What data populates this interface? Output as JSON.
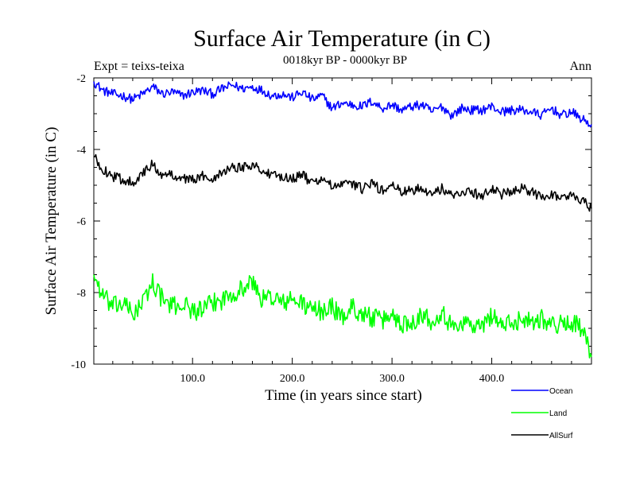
{
  "chart_data": {
    "type": "line",
    "title": "Surface Air Temperature (in C)",
    "subtitle": "0018kyr BP - 0000kyr BP",
    "experiment_label": "Expt = teixs-teixa",
    "season_label": "Ann",
    "xlabel": "Time (in years since start)",
    "ylabel": "Surface Air Temperature (in C)",
    "xlim": [
      1,
      500
    ],
    "ylim": [
      -10,
      -2
    ],
    "x_ticks": [
      100,
      200,
      300,
      400
    ],
    "x_tick_labels": [
      "100.0",
      "200.0",
      "300.0",
      "400.0"
    ],
    "y_ticks": [
      -2,
      -4,
      -6,
      -8,
      -10
    ],
    "y_tick_labels": [
      "-2",
      "-4",
      "-6",
      "-8",
      "-10"
    ],
    "legend_position": "bottom-right, below plot",
    "series": [
      {
        "name": "Ocean",
        "color": "#0000ff",
        "x": [
          1,
          10,
          20,
          30,
          40,
          50,
          60,
          70,
          80,
          90,
          100,
          110,
          120,
          130,
          140,
          150,
          160,
          170,
          180,
          190,
          200,
          210,
          220,
          230,
          240,
          250,
          260,
          270,
          280,
          290,
          300,
          310,
          320,
          330,
          340,
          350,
          360,
          370,
          380,
          390,
          400,
          410,
          420,
          430,
          440,
          450,
          460,
          470,
          480,
          490,
          500
        ],
        "values": [
          -2.1,
          -2.35,
          -2.45,
          -2.5,
          -2.6,
          -2.45,
          -2.25,
          -2.45,
          -2.4,
          -2.5,
          -2.4,
          -2.35,
          -2.45,
          -2.3,
          -2.2,
          -2.3,
          -2.25,
          -2.35,
          -2.5,
          -2.45,
          -2.55,
          -2.4,
          -2.6,
          -2.5,
          -2.85,
          -2.7,
          -2.75,
          -2.8,
          -2.65,
          -2.85,
          -2.75,
          -2.9,
          -2.8,
          -2.75,
          -2.95,
          -2.8,
          -3.05,
          -2.85,
          -2.9,
          -2.9,
          -2.8,
          -2.95,
          -2.9,
          -2.9,
          -2.95,
          -3.05,
          -2.85,
          -3.05,
          -2.95,
          -3.15,
          -3.3
        ]
      },
      {
        "name": "Land",
        "color": "#00ff00",
        "x": [
          1,
          10,
          20,
          30,
          40,
          50,
          60,
          70,
          80,
          90,
          100,
          110,
          120,
          130,
          140,
          150,
          160,
          170,
          180,
          190,
          200,
          210,
          220,
          230,
          240,
          250,
          260,
          270,
          280,
          290,
          300,
          310,
          320,
          330,
          340,
          350,
          360,
          370,
          380,
          390,
          400,
          410,
          420,
          430,
          440,
          450,
          460,
          470,
          480,
          490,
          500
        ],
        "values": [
          -7.5,
          -8.1,
          -8.4,
          -8.3,
          -8.6,
          -8.3,
          -7.7,
          -8.2,
          -8.4,
          -8.3,
          -8.5,
          -8.5,
          -8.3,
          -8.2,
          -8.0,
          -7.9,
          -7.7,
          -8.2,
          -8.1,
          -8.3,
          -8.2,
          -8.3,
          -8.5,
          -8.5,
          -8.4,
          -8.7,
          -8.4,
          -8.6,
          -8.7,
          -8.8,
          -8.6,
          -8.9,
          -8.8,
          -8.6,
          -8.8,
          -8.5,
          -9.0,
          -8.8,
          -8.9,
          -9.0,
          -8.6,
          -8.9,
          -8.9,
          -8.7,
          -8.8,
          -8.7,
          -8.9,
          -8.9,
          -8.8,
          -9.0,
          -9.8
        ]
      },
      {
        "name": "AllSurf",
        "color": "#000000",
        "x": [
          1,
          10,
          20,
          30,
          40,
          50,
          60,
          70,
          80,
          90,
          100,
          110,
          120,
          130,
          140,
          150,
          160,
          170,
          180,
          190,
          200,
          210,
          220,
          230,
          240,
          250,
          260,
          270,
          280,
          290,
          300,
          310,
          320,
          330,
          340,
          350,
          360,
          370,
          380,
          390,
          400,
          410,
          420,
          430,
          440,
          450,
          460,
          470,
          480,
          490,
          500
        ],
        "values": [
          -4.2,
          -4.55,
          -4.75,
          -4.85,
          -4.9,
          -4.7,
          -4.4,
          -4.75,
          -4.7,
          -4.8,
          -4.85,
          -4.75,
          -4.8,
          -4.6,
          -4.5,
          -4.5,
          -4.4,
          -4.6,
          -4.75,
          -4.75,
          -4.8,
          -4.7,
          -4.95,
          -4.8,
          -5.05,
          -5.0,
          -4.95,
          -5.1,
          -4.95,
          -5.15,
          -5.0,
          -5.2,
          -5.15,
          -5.05,
          -5.25,
          -5.1,
          -5.3,
          -5.15,
          -5.2,
          -5.3,
          -5.1,
          -5.25,
          -5.2,
          -5.1,
          -5.2,
          -5.3,
          -5.25,
          -5.35,
          -5.3,
          -5.4,
          -5.65
        ]
      }
    ]
  }
}
